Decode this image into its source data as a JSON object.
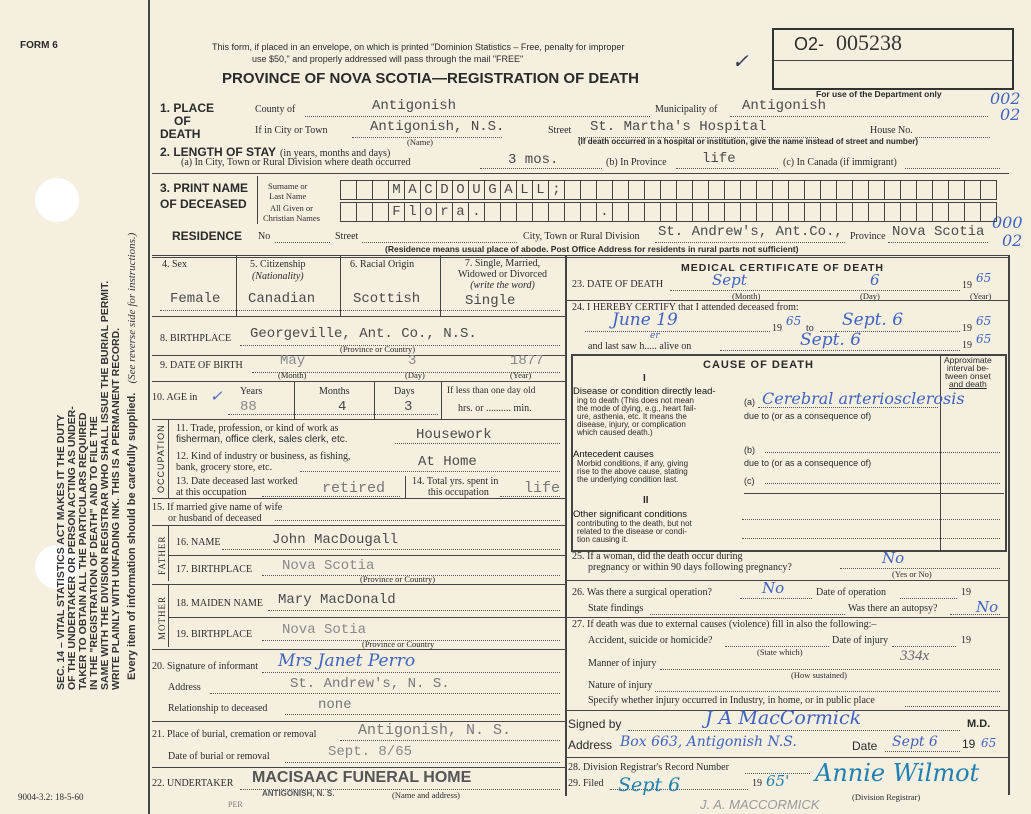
{
  "header": {
    "form_label": "FORM 6",
    "notice_line1": "This form, if placed in an envelope, on which is printed \"Dominion Statistics – Free, penalty for improper",
    "notice_line2": "use $50,\" and properly addressed will pass through the mail \"FREE\"",
    "title": "PROVINCE OF NOVA SCOTIA—REGISTRATION OF DEATH",
    "reg_prefix": "O2-",
    "reg_number": "005238",
    "dept_only": "For use of the Department only",
    "checkmark": "✓",
    "codes": [
      "002",
      "02",
      "000",
      "02"
    ]
  },
  "margin": {
    "sec14": [
      "SEC. 14 – VITAL STATISTICS ACT MAKES IT THE DUTY",
      "OF THE UNDERTAKER OR PERSON ACTING AS UNDER-",
      "TAKER TO OBTAIN ALL THE PARTICULARS REQUIRED",
      "IN THE \"REGISTRATION OF DEATH\" AND TO FILE THE",
      "SAME WITH THE DIVISION REGISTRAR WHO SHALL ISSUE THE BURIAL PERMIT.",
      "WRITE PLAINLY WITH UNFADING INK. THIS IS A PERMANENT RECORD."
    ],
    "every_item": "Every item of information should be carefully supplied.",
    "see_reverse": "(See reverse side for instructions.)",
    "form_code": "9004-3.2: 18-5-60",
    "per": "PER"
  },
  "place": {
    "label": [
      "1. PLACE",
      "OF",
      "DEATH"
    ],
    "county_label": "County of",
    "county": "Antigonish",
    "municipality_label": "Municipality of",
    "municipality": "Antigonish",
    "city_label": "If in City or Town",
    "city": "Antigonish, N.S.",
    "name_note": "(Name)",
    "street_label": "Street",
    "street": "St. Martha's Hospital",
    "house_label": "House No.",
    "hospital_note": "(If death occurred in a hospital or institution, give the name instead of street and number)"
  },
  "stay": {
    "label": "2. LENGTH OF STAY",
    "label_note": "(in years, months and days)",
    "a_label": "(a) In City, Town or Rural Division where death occurred",
    "a": "3 mos.",
    "b_label": "(b) In Province",
    "b": "life",
    "c_label": "(c) In Canada (if immigrant)"
  },
  "name": {
    "label": [
      "3. PRINT NAME",
      "OF DECEASED"
    ],
    "surname_label": [
      "Surname or",
      "Last Name"
    ],
    "given_label": [
      "All Given or",
      "Christian Names"
    ],
    "surname": [
      "",
      "",
      "",
      "M",
      "A",
      "C",
      "D",
      "O",
      "U",
      "G",
      "A",
      "L",
      "L",
      ";",
      "",
      "",
      "",
      "",
      "",
      "",
      "",
      "",
      "",
      "",
      "",
      "",
      "",
      "",
      "",
      "",
      "",
      "",
      "",
      "",
      "",
      "",
      "",
      "",
      "",
      "",
      ""
    ],
    "given": [
      "",
      "",
      "",
      "F",
      "l",
      "o",
      "r",
      "a",
      ".",
      "",
      "",
      "",
      "",
      "",
      "",
      "",
      ".",
      "",
      "",
      "",
      "",
      "",
      "",
      "",
      "",
      "",
      "",
      "",
      "",
      "",
      "",
      "",
      "",
      "",
      "",
      "",
      "",
      "",
      "",
      "",
      ""
    ]
  },
  "residence": {
    "label": "RESIDENCE",
    "no_label": "No",
    "street_label": "Street",
    "city_label": "City, Town or Rural Division",
    "city": "St. Andrew's, Ant.Co.,",
    "province_label": "Province",
    "province": "Nova Scotia",
    "note": "(Residence means usual place of abode. Post Office Address for residents in rural parts not sufficient)"
  },
  "personal": {
    "sex_label": "4. Sex",
    "sex": "Female",
    "citizenship_label": "5. Citizenship",
    "citizenship_note": "(Nationality)",
    "citizenship": "Canadian",
    "racial_label": "6. Racial Origin",
    "racial": "Scottish",
    "marital_label": [
      "7. Single, Married,",
      "Widowed or Divorced",
      "(write the word)"
    ],
    "marital": "Single",
    "birthplace_label": "8. BIRTHPLACE",
    "birthplace": "Georgeville, Ant. Co., N.S.",
    "birthplace_note": "(Province or Country)",
    "dob_label": "9. DATE OF BIRTH",
    "dob_month": "May",
    "dob_day": "3",
    "dob_year": "1877",
    "month_note": "(Month)",
    "day_note": "(Day)",
    "year_note": "(Year)",
    "age_label": "10. AGE in",
    "years_label": "Years",
    "months_label": "Months",
    "days_label": "Days",
    "lessday_label": "If less than one day old",
    "hrs_label": "hrs. or .......... min.",
    "years": "88",
    "months": "4",
    "days": "3",
    "age_check": "✓"
  },
  "occupation": {
    "side_label": "OCCUPATION",
    "q11": [
      "11. Trade, profession, or kind of work as",
      "fisherman, office clerk, sales clerk, etc."
    ],
    "a11": "Housework",
    "q12": [
      "12. Kind of industry or business, as fishing,",
      "bank, grocery store, etc."
    ],
    "a12": "At Home",
    "q13": [
      "13. Date deceased last worked",
      "at this occupation"
    ],
    "a13": "retired",
    "q14": [
      "14. Total yrs. spent in",
      "this occupation"
    ],
    "a14": "life"
  },
  "spouse": {
    "label": [
      "15. If married give name of wife",
      "or husband of deceased"
    ]
  },
  "father": {
    "side_label": "FATHER",
    "name_label": "16. NAME",
    "name": "John MacDougall",
    "birthplace_label": "17. BIRTHPLACE",
    "birthplace": "Nova Scotia",
    "note": "(Province or Country)"
  },
  "mother": {
    "side_label": "MOTHER",
    "name_label": "18. MAIDEN NAME",
    "name": "Mary MacDonald",
    "birthplace_label": "19. BIRTHPLACE",
    "birthplace": "Nova Sotia",
    "note": "(Province or Country"
  },
  "informant": {
    "label": "20. Signature of informant",
    "signature": "Mrs Janet Perro",
    "address_label": "Address",
    "address": "St. Andrew's, N. S.",
    "relationship_label": "Relationship to deceased",
    "relationship": "none"
  },
  "burial": {
    "place_label": "21. Place of burial, cremation or removal",
    "place": "Antigonish, N. S.",
    "date_label": "Date of burial or removal",
    "date": "Sept. 8/65",
    "undertaker_label": "22. UNDERTAKER",
    "stamp_line1": "MACISAAC FUNERAL HOME",
    "stamp_line2": "ANTIGONISH, N. S.",
    "note": "(Name and address)"
  },
  "medical": {
    "title": "MEDICAL CERTIFICATE OF DEATH",
    "death_label": "23. DATE OF DEATH",
    "death_month": "Sept",
    "death_day": "6",
    "death_year": "65",
    "month_note": "(Month)",
    "day_note": "(Day)",
    "year_note": "(Year)",
    "certify_label": "24. I HEREBY CERTIFY that I attended deceased from:",
    "from": "June 19",
    "from_year": "65",
    "to_label": "to",
    "to": "Sept. 6",
    "to_year": "65",
    "lastsaw_label": "and last saw h..... alive on",
    "lastsaw_him": "er",
    "lastsaw": "Sept. 6",
    "lastsaw_year": "65",
    "nineteen": "19"
  },
  "cause": {
    "title": "CAUSE OF DEATH",
    "interval": [
      "Approximate",
      "interval be-",
      "tween onset",
      "and death"
    ],
    "part1": "I",
    "direct_label": "Disease or condition directly lead-",
    "direct_note": [
      "ing to death (This does not mean",
      "the mode of dying, e.g., heart fail-",
      "ure, asthenia, etc. It means the",
      "disease, injury, or complication",
      "which caused death.)"
    ],
    "a_label": "(a)",
    "a": "Cerebral arteriosclerosis",
    "due_to": "due to (or as a consequence of)",
    "antecedent_label": "Antecedent causes",
    "antecedent_note": [
      "Morbid conditions, if any, giving",
      "rise to the above cause, stating",
      "the underlying condition last."
    ],
    "b_label": "(b)",
    "c_label": "(c)",
    "part2": "II",
    "other_label": "Other significant conditions",
    "other_note": [
      "contributing to the death, but not",
      "related to the disease or condi-",
      "tion causing it."
    ]
  },
  "q25": {
    "label": [
      "25. If a woman, did the death occur during",
      "pregnancy or within 90 days following pregnancy?"
    ],
    "answer": "No",
    "note": "(Yes or No)"
  },
  "q26": {
    "label": "26. Was there a surgical operation?",
    "answer": "No",
    "date_label": "Date of operation",
    "findings_label": "State findings",
    "autopsy_label": "Was there an autopsy?",
    "autopsy": "No"
  },
  "q27": {
    "label": "27. If death was due to external causes (violence) fill in also the following:–",
    "accident_label": "Accident, suicide or homicide?",
    "state_which": "(State which)",
    "injury_date_label": "Date of injury",
    "manner_label": "Manner of injury",
    "manner_code": "334x",
    "how_note": "(How sustained)",
    "nature_label": "Nature of injury",
    "specify_label": "Specify whether injury occurred in Industry, in home, or in public place"
  },
  "signature": {
    "signed_label": "Signed by",
    "signed": "J A MacCormick",
    "md": "M.D.",
    "address_label": "Address",
    "address": "Box 663, Antigonish N.S.",
    "date_label": "Date",
    "date": "Sept 6",
    "year": "65",
    "nineteen": "19"
  },
  "registrar": {
    "record_label": "28. Division Registrar's Record Number",
    "filed_label": "29. Filed",
    "filed": "Sept 6",
    "filed_year": "65'",
    "registrar_sig": "Annie Wilmot",
    "registrar_note": "(Division Registrar)",
    "pencil_name": "J. A. MACCORMICK"
  }
}
